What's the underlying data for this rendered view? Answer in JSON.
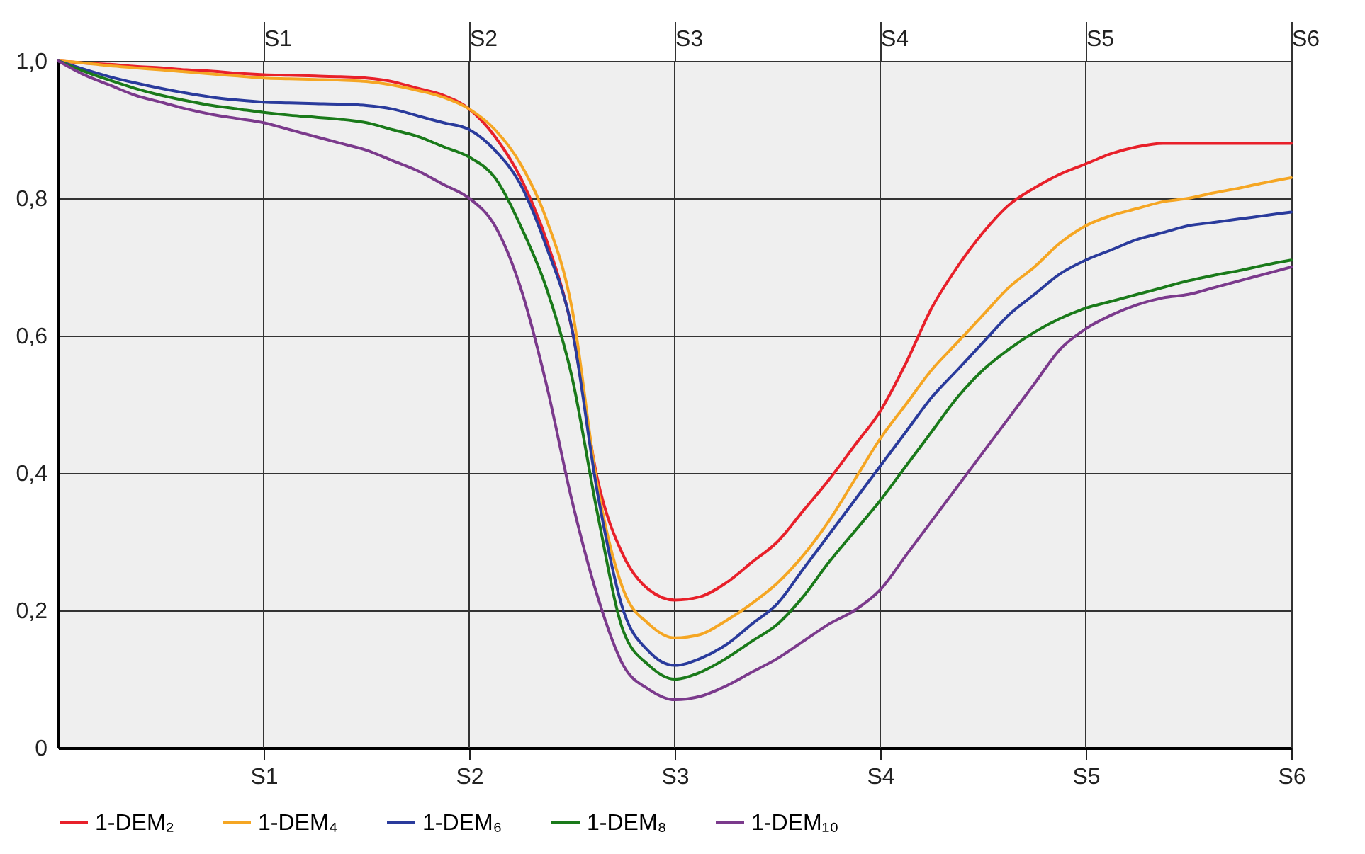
{
  "chart_data": {
    "type": "line",
    "ylim": [
      0,
      1
    ],
    "categories": [
      null,
      null,
      null,
      null,
      null,
      null,
      null,
      null,
      "S1",
      null,
      null,
      null,
      null,
      null,
      null,
      null,
      "S2",
      null,
      null,
      null,
      null,
      null,
      null,
      null,
      "S3",
      null,
      null,
      null,
      null,
      null,
      null,
      null,
      "S4",
      null,
      null,
      null,
      null,
      null,
      null,
      null,
      "S5",
      null,
      null,
      null,
      null,
      null,
      null,
      null,
      "S6"
    ],
    "yticks": [
      {
        "value": 0,
        "label": "0"
      },
      {
        "value": 0.2,
        "label": "0,2"
      },
      {
        "value": 0.4,
        "label": "0,4"
      },
      {
        "value": 0.6,
        "label": "0,6"
      },
      {
        "value": 0.8,
        "label": "0,8"
      },
      {
        "value": 1,
        "label": "1,0"
      }
    ],
    "grid": true,
    "legend": "bottom",
    "marker": "none",
    "line_style": "solid",
    "series": [
      {
        "name": "1-DEM₂",
        "color": "#e8202a",
        "values": [
          1,
          0.997,
          0.995,
          0.992,
          0.99,
          0.987,
          0.985,
          0.982,
          0.98,
          0.979,
          0.978,
          0.977,
          0.975,
          0.97,
          0.96,
          0.95,
          0.93,
          0.89,
          0.83,
          0.74,
          0.61,
          0.39,
          0.28,
          0.23,
          0.215,
          0.22,
          0.24,
          0.27,
          0.3,
          0.345,
          0.39,
          0.44,
          0.49,
          0.56,
          0.64,
          0.7,
          0.75,
          0.79,
          0.815,
          0.835,
          0.85,
          0.865,
          0.875,
          0.88,
          0.88,
          0.88,
          0.88,
          0.88,
          0.88
        ]
      },
      {
        "name": "1-DEM₄",
        "color": "#f5a623",
        "values": [
          1,
          0.997,
          0.993,
          0.99,
          0.987,
          0.984,
          0.981,
          0.978,
          0.975,
          0.974,
          0.973,
          0.972,
          0.97,
          0.965,
          0.957,
          0.947,
          0.93,
          0.9,
          0.85,
          0.77,
          0.64,
          0.38,
          0.23,
          0.18,
          0.16,
          0.165,
          0.185,
          0.21,
          0.24,
          0.28,
          0.33,
          0.39,
          0.45,
          0.5,
          0.55,
          0.59,
          0.63,
          0.67,
          0.7,
          0.735,
          0.76,
          0.775,
          0.785,
          0.795,
          0.8,
          0.808,
          0.815,
          0.823,
          0.83
        ]
      },
      {
        "name": "1-DEM₆",
        "color": "#2a3b9c",
        "values": [
          1,
          0.988,
          0.977,
          0.968,
          0.96,
          0.953,
          0.947,
          0.943,
          0.94,
          0.939,
          0.938,
          0.937,
          0.935,
          0.93,
          0.92,
          0.91,
          0.9,
          0.87,
          0.82,
          0.73,
          0.61,
          0.37,
          0.2,
          0.14,
          0.12,
          0.13,
          0.15,
          0.18,
          0.21,
          0.26,
          0.31,
          0.36,
          0.41,
          0.46,
          0.51,
          0.55,
          0.59,
          0.63,
          0.66,
          0.69,
          0.71,
          0.725,
          0.74,
          0.75,
          0.76,
          0.765,
          0.77,
          0.775,
          0.78
        ]
      },
      {
        "name": "1-DEM₈",
        "color": "#1a7a1a",
        "values": [
          1,
          0.985,
          0.972,
          0.96,
          0.95,
          0.942,
          0.935,
          0.93,
          0.925,
          0.921,
          0.918,
          0.915,
          0.91,
          0.9,
          0.89,
          0.875,
          0.86,
          0.83,
          0.76,
          0.67,
          0.54,
          0.34,
          0.17,
          0.12,
          0.1,
          0.11,
          0.13,
          0.155,
          0.18,
          0.22,
          0.27,
          0.315,
          0.36,
          0.41,
          0.46,
          0.51,
          0.55,
          0.58,
          0.605,
          0.625,
          0.64,
          0.65,
          0.66,
          0.67,
          0.68,
          0.688,
          0.695,
          0.703,
          0.71
        ]
      },
      {
        "name": "1-DEM₁₀",
        "color": "#7b3a8c",
        "values": [
          1,
          0.98,
          0.965,
          0.95,
          0.94,
          0.93,
          0.922,
          0.916,
          0.91,
          0.9,
          0.89,
          0.88,
          0.87,
          0.855,
          0.84,
          0.82,
          0.8,
          0.76,
          0.67,
          0.53,
          0.36,
          0.22,
          0.12,
          0.085,
          0.07,
          0.075,
          0.09,
          0.11,
          0.13,
          0.155,
          0.18,
          0.2,
          0.23,
          0.28,
          0.33,
          0.38,
          0.43,
          0.48,
          0.53,
          0.58,
          0.61,
          0.63,
          0.645,
          0.655,
          0.66,
          0.67,
          0.68,
          0.69,
          0.7
        ]
      }
    ]
  }
}
